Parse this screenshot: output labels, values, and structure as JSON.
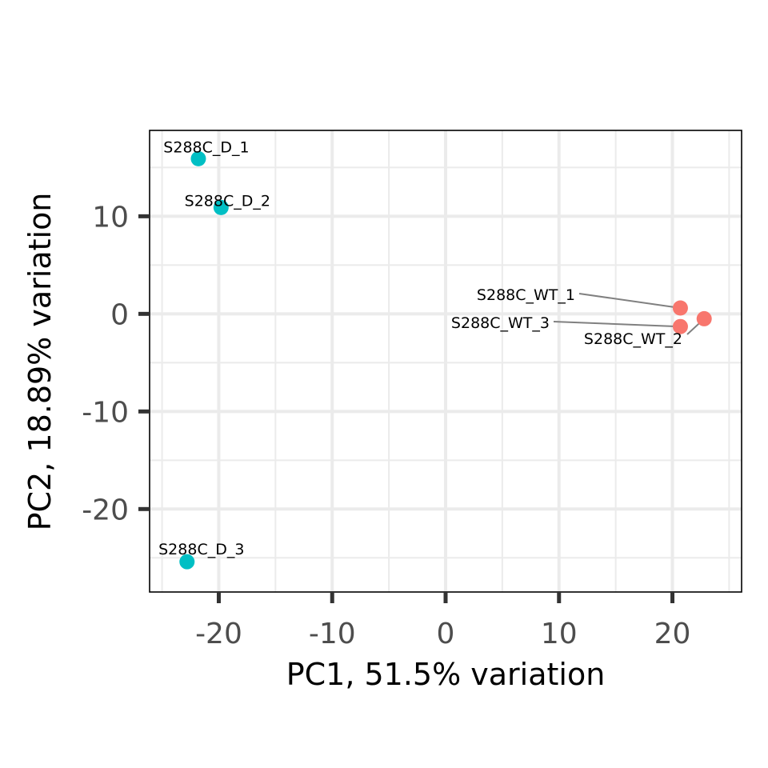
{
  "chart_data": {
    "type": "scatter",
    "xlabel": "PC1, 51.5% variation",
    "ylabel": "PC2, 18.89% variation",
    "xlim": [
      -26.1,
      26.1
    ],
    "ylim": [
      -28.5,
      18.8
    ],
    "xticks": [
      -20,
      -10,
      0,
      10,
      20
    ],
    "yticks": [
      -20,
      -10,
      0,
      10
    ],
    "xtick_labels": [
      "-20",
      "-10",
      "0",
      "10",
      "20"
    ],
    "ytick_labels": [
      "-20",
      "-10",
      "0",
      "10"
    ],
    "grid": true,
    "legend": "none",
    "colors": {
      "D": "#00BFC4",
      "WT": "#F8766D",
      "connector": "#808080"
    },
    "points": [
      {
        "label": "S288C_D_1",
        "x": -21.8,
        "y": 15.9,
        "group": "D"
      },
      {
        "label": "S288C_D_2",
        "x": -19.8,
        "y": 10.9,
        "group": "D"
      },
      {
        "label": "S288C_D_3",
        "x": -22.8,
        "y": -25.4,
        "group": "D"
      },
      {
        "label": "S288C_WT_1",
        "x": 20.7,
        "y": 0.6,
        "group": "WT"
      },
      {
        "label": "S288C_WT_2",
        "x": 22.8,
        "y": -0.5,
        "group": "WT"
      },
      {
        "label": "S288C_WT_3",
        "x": 20.7,
        "y": -1.3,
        "group": "WT"
      }
    ]
  }
}
